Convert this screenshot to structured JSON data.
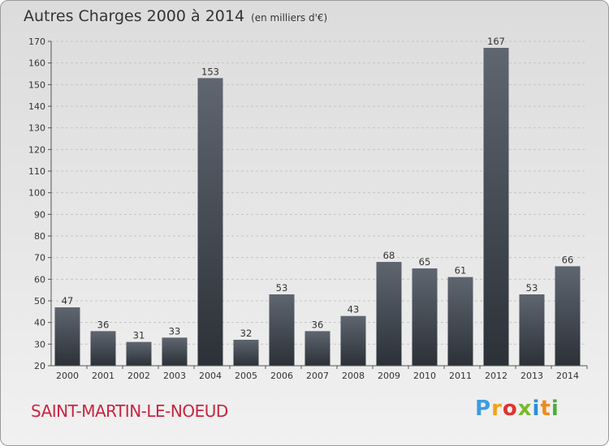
{
  "header": {
    "title": "Autres Charges 2000 à 2014",
    "subtitle": "(en milliers d'€)"
  },
  "footer": {
    "place": "SAINT-MARTIN-LE-NOEUD",
    "logo_text": "Proxiti"
  },
  "colors": {
    "bar_top": "#5f6670",
    "bar_bottom": "#2c3138",
    "place": "#c9243f",
    "logo": [
      "#3f9be0",
      "#f2a21b",
      "#e2332f",
      "#7ab92a",
      "#2a8fd6",
      "#f08a1a",
      "#4cae3c"
    ]
  },
  "chart_data": {
    "type": "bar",
    "title": "Autres Charges 2000 à 2014",
    "subtitle": "(en milliers d'€)",
    "categories": [
      "2000",
      "2001",
      "2002",
      "2003",
      "2004",
      "2005",
      "2006",
      "2007",
      "2008",
      "2009",
      "2010",
      "2011",
      "2012",
      "2013",
      "2014"
    ],
    "values": [
      47,
      36,
      31,
      33,
      153,
      32,
      53,
      36,
      43,
      68,
      65,
      61,
      167,
      53,
      66
    ],
    "ylim": [
      20,
      170
    ],
    "yticks": [
      20,
      30,
      40,
      50,
      60,
      70,
      80,
      90,
      100,
      110,
      120,
      130,
      140,
      150,
      160,
      170
    ],
    "grid": true,
    "legend": "none"
  }
}
